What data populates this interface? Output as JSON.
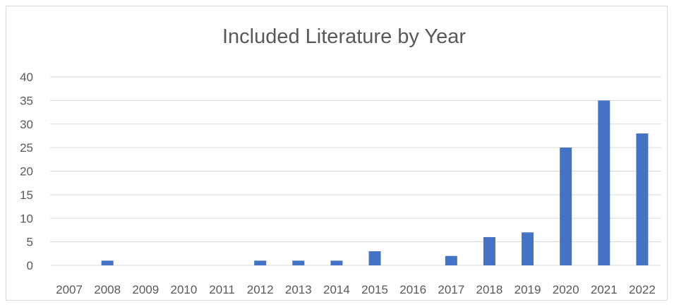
{
  "chart_data": {
    "type": "bar",
    "title": "Included Literature by Year",
    "xlabel": "",
    "ylabel": "",
    "categories": [
      "2007",
      "2008",
      "2009",
      "2010",
      "2011",
      "2012",
      "2013",
      "2014",
      "2015",
      "2016",
      "2017",
      "2018",
      "2019",
      "2020",
      "2021",
      "2022"
    ],
    "values": [
      0,
      1,
      0,
      0,
      0,
      1,
      1,
      1,
      3,
      0,
      2,
      6,
      7,
      25,
      35,
      28
    ],
    "ylim": [
      0,
      40
    ],
    "yticks": [
      0,
      5,
      10,
      15,
      20,
      25,
      30,
      35,
      40
    ],
    "grid": true,
    "legend": "none",
    "bar_color": "#4472c4",
    "grid_color": "#d9d9d9"
  }
}
